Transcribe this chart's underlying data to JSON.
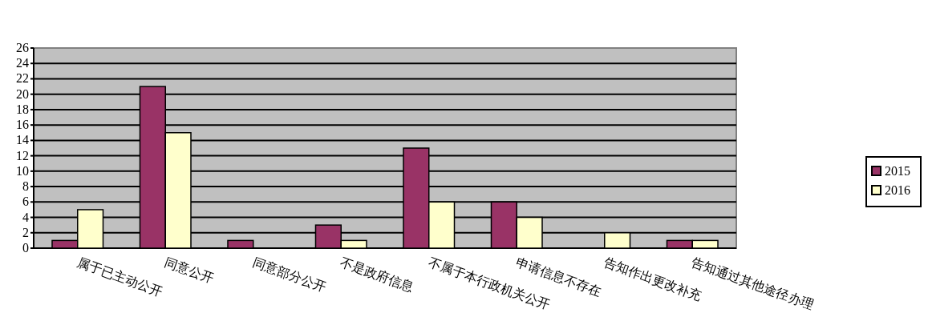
{
  "chart_data": {
    "type": "bar",
    "categories": [
      "属于已主动公开",
      "同意公开",
      "同意部分公开",
      "不是政府信息",
      "不属于本行政机关公开",
      "申请信息不存在",
      "告知作出更改补充",
      "告知通过其他途径办理"
    ],
    "series": [
      {
        "name": "2015",
        "color": "#993366",
        "values": [
          1,
          21,
          1,
          3,
          13,
          6,
          0,
          1
        ]
      },
      {
        "name": "2016",
        "color": "#ffffcc",
        "values": [
          5,
          15,
          0,
          1,
          6,
          4,
          2,
          1
        ]
      }
    ],
    "ylim": [
      0,
      26
    ],
    "yticks": [
      0,
      2,
      4,
      6,
      8,
      10,
      12,
      14,
      16,
      18,
      20,
      22,
      24,
      26
    ],
    "grid": "y",
    "legend": "right"
  }
}
